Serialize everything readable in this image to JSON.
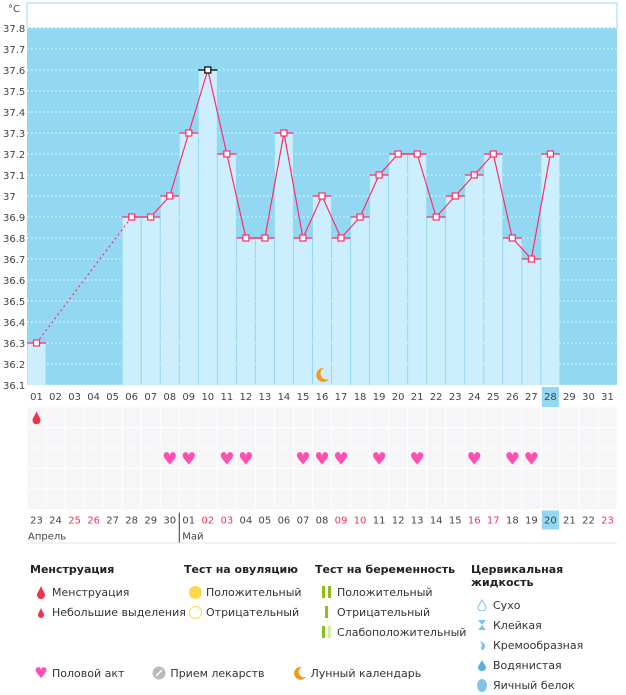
{
  "chart_data": {
    "type": "line",
    "ylabel": "°C",
    "ylim": [
      36.1,
      37.8
    ],
    "yticks": [
      "37.8",
      "37.7",
      "37.6",
      "37.5",
      "37.4",
      "37.3",
      "37.2",
      "37.1",
      "37",
      "36.9",
      "36.8",
      "36.7",
      "36.6",
      "36.5",
      "36.4",
      "36.3",
      "36.2",
      "36.1"
    ],
    "x": [
      "01",
      "02",
      "03",
      "04",
      "05",
      "06",
      "07",
      "08",
      "09",
      "10",
      "11",
      "12",
      "13",
      "14",
      "15",
      "16",
      "17",
      "18",
      "19",
      "20",
      "21",
      "22",
      "23",
      "24",
      "25",
      "26",
      "27",
      "28",
      "29",
      "30",
      "31"
    ],
    "values": [
      36.3,
      null,
      null,
      null,
      null,
      36.9,
      36.9,
      37.0,
      37.3,
      37.6,
      37.2,
      36.8,
      36.8,
      37.3,
      36.8,
      37.0,
      36.8,
      36.9,
      37.1,
      37.2,
      37.2,
      36.9,
      37.0,
      37.1,
      37.2,
      36.8,
      36.7,
      37.2,
      null,
      null,
      null
    ],
    "current_day": "28",
    "max_day": "10",
    "moon_day": "16",
    "colors": {
      "plot_bg": "#93d8f3",
      "bar": "#cdeefc",
      "line": "#ff2d6a"
    }
  },
  "events": {
    "menstruation_days": [
      "01"
    ],
    "intercourse_days": [
      "08",
      "09",
      "11",
      "12",
      "15",
      "16",
      "17",
      "19",
      "21",
      "24",
      "26",
      "27"
    ]
  },
  "calendar": {
    "dates": [
      "23",
      "24",
      "25",
      "26",
      "27",
      "28",
      "29",
      "30",
      "01",
      "02",
      "03",
      "04",
      "05",
      "06",
      "07",
      "08",
      "09",
      "10",
      "11",
      "12",
      "13",
      "14",
      "15",
      "16",
      "17",
      "18",
      "19",
      "20",
      "21",
      "22",
      "23"
    ],
    "weekend": [
      2,
      3,
      9,
      10,
      16,
      17,
      23,
      24,
      30
    ],
    "months": [
      "Апрель",
      "Май"
    ]
  },
  "legend": {
    "menstruation": {
      "title": "Менструация",
      "items": [
        "Менструация",
        "Небольшие выделения"
      ]
    },
    "ovulation": {
      "title": "Тест на овуляцию",
      "items": [
        "Положительный",
        "Отрицательный"
      ]
    },
    "pregnancy": {
      "title": "Тест на беременность",
      "items": [
        "Положительный",
        "Отрицательный",
        "Слабоположительный"
      ]
    },
    "cervical": {
      "title": "Цервикальная жидкость",
      "items": [
        "Сухо",
        "Клейкая",
        "Кремообразная",
        "Водянистая",
        "Яичный белок"
      ]
    },
    "other": [
      "Половой акт",
      "Прием лекарств",
      "Лунный календарь"
    ]
  }
}
